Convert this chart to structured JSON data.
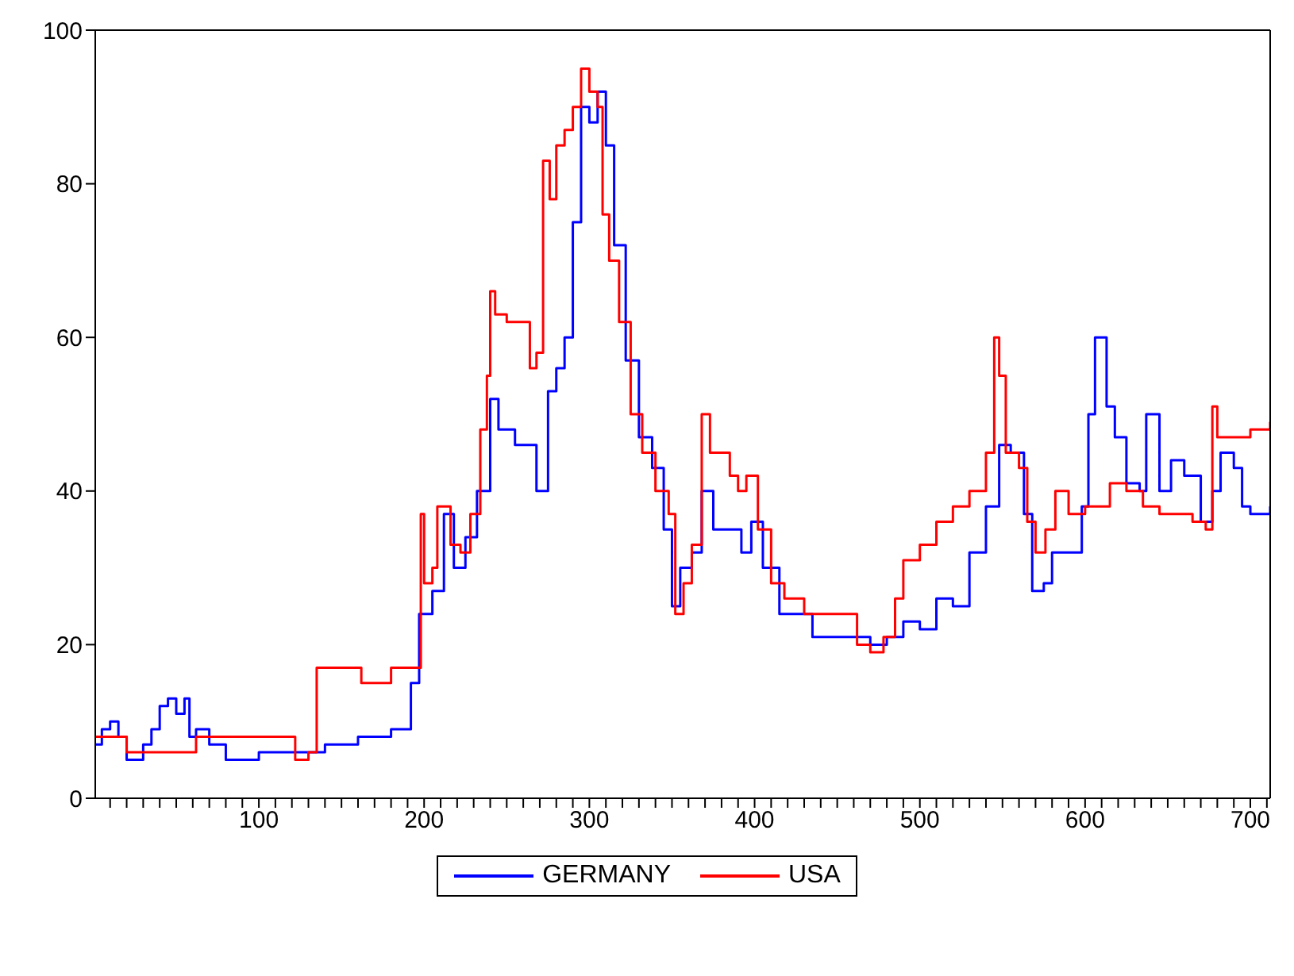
{
  "chart_data": {
    "type": "step",
    "legend": "bottom",
    "marker": "none",
    "line_style": "solid",
    "xlim": [
      1,
      712
    ],
    "ylim": [
      0,
      100
    ],
    "yticks": [
      0,
      20,
      40,
      60,
      80,
      100
    ],
    "xticks": [
      {
        "value": 10,
        "label": null
      },
      {
        "value": 20,
        "label": null
      },
      {
        "value": 30,
        "label": null
      },
      {
        "value": 40,
        "label": null
      },
      {
        "value": 50,
        "label": null
      },
      {
        "value": 60,
        "label": null
      },
      {
        "value": 70,
        "label": null
      },
      {
        "value": 80,
        "label": null
      },
      {
        "value": 90,
        "label": null
      },
      100,
      {
        "value": 110,
        "label": null
      },
      {
        "value": 120,
        "label": null
      },
      {
        "value": 130,
        "label": null
      },
      {
        "value": 140,
        "label": null
      },
      {
        "value": 150,
        "label": null
      },
      {
        "value": 160,
        "label": null
      },
      {
        "value": 170,
        "label": null
      },
      {
        "value": 180,
        "label": null
      },
      {
        "value": 190,
        "label": null
      },
      200,
      {
        "value": 210,
        "label": null
      },
      {
        "value": 220,
        "label": null
      },
      {
        "value": 230,
        "label": null
      },
      {
        "value": 240,
        "label": null
      },
      {
        "value": 250,
        "label": null
      },
      {
        "value": 260,
        "label": null
      },
      {
        "value": 270,
        "label": null
      },
      {
        "value": 280,
        "label": null
      },
      {
        "value": 290,
        "label": null
      },
      300,
      {
        "value": 310,
        "label": null
      },
      {
        "value": 320,
        "label": null
      },
      {
        "value": 330,
        "label": null
      },
      {
        "value": 340,
        "label": null
      },
      {
        "value": 350,
        "label": null
      },
      {
        "value": 360,
        "label": null
      },
      {
        "value": 370,
        "label": null
      },
      {
        "value": 380,
        "label": null
      },
      {
        "value": 390,
        "label": null
      },
      400,
      {
        "value": 410,
        "label": null
      },
      {
        "value": 420,
        "label": null
      },
      {
        "value": 430,
        "label": null
      },
      {
        "value": 440,
        "label": null
      },
      {
        "value": 450,
        "label": null
      },
      {
        "value": 460,
        "label": null
      },
      {
        "value": 470,
        "label": null
      },
      {
        "value": 480,
        "label": null
      },
      {
        "value": 490,
        "label": null
      },
      500,
      {
        "value": 510,
        "label": null
      },
      {
        "value": 520,
        "label": null
      },
      {
        "value": 530,
        "label": null
      },
      {
        "value": 540,
        "label": null
      },
      {
        "value": 550,
        "label": null
      },
      {
        "value": 560,
        "label": null
      },
      {
        "value": 570,
        "label": null
      },
      {
        "value": 580,
        "label": null
      },
      {
        "value": 590,
        "label": null
      },
      600,
      {
        "value": 610,
        "label": null
      },
      {
        "value": 620,
        "label": null
      },
      {
        "value": 630,
        "label": null
      },
      {
        "value": 640,
        "label": null
      },
      {
        "value": 650,
        "label": null
      },
      {
        "value": 660,
        "label": null
      },
      {
        "value": 670,
        "label": null
      },
      {
        "value": 680,
        "label": null
      },
      {
        "value": 690,
        "label": null
      },
      700,
      {
        "value": 710,
        "label": null
      }
    ],
    "series": [
      {
        "name": "GERMANY",
        "color": "#0000ff",
        "x": [
          1,
          5,
          10,
          15,
          20,
          25,
          30,
          35,
          40,
          45,
          50,
          55,
          58,
          62,
          70,
          80,
          90,
          100,
          110,
          120,
          130,
          140,
          150,
          160,
          170,
          180,
          188,
          192,
          197,
          205,
          212,
          218,
          225,
          232,
          240,
          245,
          255,
          262,
          268,
          275,
          280,
          285,
          290,
          295,
          300,
          305,
          310,
          315,
          322,
          330,
          338,
          345,
          350,
          355,
          362,
          368,
          375,
          385,
          392,
          398,
          405,
          415,
          425,
          435,
          450,
          460,
          470,
          480,
          490,
          500,
          510,
          520,
          530,
          540,
          548,
          555,
          563,
          568,
          575,
          580,
          590,
          598,
          602,
          606,
          613,
          618,
          625,
          633,
          637,
          645,
          652,
          660,
          670,
          677,
          682,
          690,
          695,
          700,
          712
        ],
        "values": [
          7,
          9,
          10,
          8,
          5,
          5,
          7,
          9,
          12,
          13,
          11,
          13,
          8,
          9,
          7,
          5,
          5,
          6,
          6,
          6,
          6,
          7,
          7,
          8,
          8,
          9,
          9,
          15,
          24,
          27,
          37,
          30,
          34,
          40,
          52,
          48,
          46,
          46,
          40,
          53,
          56,
          60,
          75,
          90,
          88,
          92,
          85,
          72,
          57,
          47,
          43,
          35,
          25,
          30,
          32,
          40,
          35,
          35,
          32,
          36,
          30,
          24,
          24,
          21,
          21,
          21,
          20,
          21,
          23,
          22,
          26,
          25,
          32,
          38,
          46,
          45,
          37,
          27,
          28,
          32,
          32,
          38,
          50,
          60,
          51,
          47,
          41,
          40,
          50,
          40,
          44,
          42,
          36,
          40,
          45,
          43,
          38,
          37,
          38
        ]
      },
      {
        "name": "USA",
        "color": "#ff0000",
        "x": [
          1,
          15,
          20,
          60,
          62,
          120,
          122,
          130,
          135,
          160,
          162,
          178,
          180,
          195,
          198,
          200,
          205,
          208,
          212,
          216,
          222,
          228,
          234,
          238,
          240,
          243,
          250,
          258,
          264,
          268,
          272,
          276,
          280,
          285,
          290,
          295,
          300,
          305,
          308,
          312,
          318,
          325,
          332,
          340,
          348,
          352,
          357,
          362,
          368,
          373,
          380,
          385,
          390,
          395,
          402,
          410,
          418,
          430,
          440,
          455,
          462,
          470,
          478,
          485,
          490,
          500,
          510,
          520,
          530,
          540,
          545,
          548,
          552,
          560,
          565,
          570,
          576,
          582,
          590,
          600,
          610,
          615,
          625,
          635,
          645,
          655,
          665,
          673,
          677,
          680,
          690,
          700,
          712
        ],
        "values": [
          8,
          8,
          6,
          6,
          8,
          8,
          5,
          6,
          17,
          17,
          15,
          15,
          17,
          17,
          37,
          28,
          30,
          38,
          38,
          33,
          32,
          37,
          48,
          55,
          66,
          63,
          62,
          62,
          56,
          58,
          83,
          78,
          85,
          87,
          90,
          95,
          92,
          90,
          76,
          70,
          62,
          50,
          45,
          40,
          37,
          24,
          28,
          33,
          50,
          45,
          45,
          42,
          40,
          42,
          35,
          28,
          26,
          24,
          24,
          24,
          20,
          19,
          21,
          26,
          31,
          33,
          36,
          38,
          40,
          45,
          60,
          55,
          45,
          43,
          36,
          32,
          35,
          40,
          37,
          38,
          38,
          41,
          40,
          38,
          37,
          37,
          36,
          35,
          51,
          47,
          47,
          48,
          49
        ]
      }
    ]
  }
}
